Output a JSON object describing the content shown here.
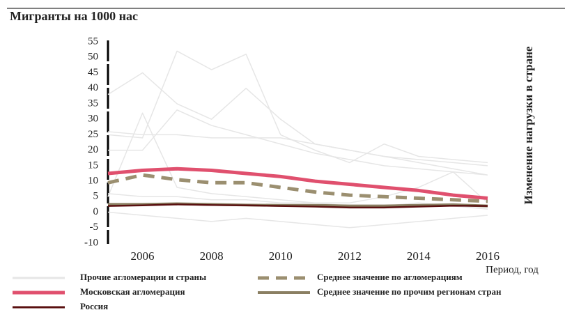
{
  "chart_data": {
    "type": "line",
    "title": "Мигранты на 1000 нас",
    "y2_label": "Изменение нагрузки в стране",
    "x_label": "Период, год",
    "x": [
      2005,
      2006,
      2007,
      2008,
      2009,
      2010,
      2011,
      2012,
      2013,
      2014,
      2015,
      2016
    ],
    "xlim": [
      2005,
      2016
    ],
    "xticks": [
      2006,
      2008,
      2010,
      2012,
      2014,
      2016
    ],
    "ylim": [
      -10,
      55
    ],
    "yticks": [
      -10,
      -5,
      0,
      5,
      10,
      15,
      20,
      25,
      30,
      35,
      40,
      45,
      50,
      55
    ],
    "series": [
      {
        "name": "Прочие агломерации и страны",
        "color": "#e6e6e6",
        "width": 1.5,
        "dash": false,
        "values": [
          [
            38,
            45,
            35,
            30,
            40,
            30,
            22,
            20,
            18,
            17,
            16,
            15
          ],
          [
            25,
            24,
            52,
            46,
            51,
            25,
            20,
            16,
            22,
            18,
            17,
            16
          ],
          [
            20,
            20,
            33,
            28,
            25,
            22,
            19,
            17,
            15,
            14,
            13,
            12
          ],
          [
            5,
            32,
            8,
            6,
            5,
            4,
            3,
            2,
            2,
            3,
            2,
            1
          ],
          [
            26,
            25,
            25,
            24,
            24,
            24,
            22,
            20,
            18,
            16,
            14,
            12
          ],
          [
            0,
            -1,
            -2,
            -3,
            -2,
            -3,
            -4,
            -5,
            -4,
            -3,
            -2,
            -1
          ],
          [
            6,
            5,
            5,
            4,
            4,
            3,
            3,
            3,
            5,
            8,
            13,
            3
          ]
        ]
      },
      {
        "name": "Среднее значение по агломерациям",
        "color": "#9b8f70",
        "width": 5,
        "dash": true,
        "values": [
          9.5,
          12,
          10.5,
          9.5,
          9.5,
          8,
          6.5,
          5.5,
          5,
          4.5,
          4,
          3.5
        ]
      },
      {
        "name": "Московская агломерация",
        "color": "#e0506e",
        "width": 5,
        "dash": false,
        "values": [
          12.5,
          13.5,
          14,
          13.5,
          12.5,
          11.5,
          10,
          9,
          8,
          7,
          5.5,
          4.5
        ]
      },
      {
        "name": "Среднее значение по прочим регионам стран",
        "color": "#8a7f62",
        "width": 4,
        "dash": false,
        "values": [
          2.5,
          2.5,
          2.7,
          2.5,
          2.3,
          2.2,
          2.2,
          2.0,
          2.0,
          2.2,
          2.4,
          2.0
        ]
      },
      {
        "name": "Россия",
        "color": "#5a1010",
        "width": 2.5,
        "dash": false,
        "values": [
          2,
          2.2,
          2.5,
          2.3,
          2.2,
          2.0,
          1.8,
          1.5,
          1.5,
          1.8,
          2.1,
          2.0
        ]
      }
    ]
  }
}
